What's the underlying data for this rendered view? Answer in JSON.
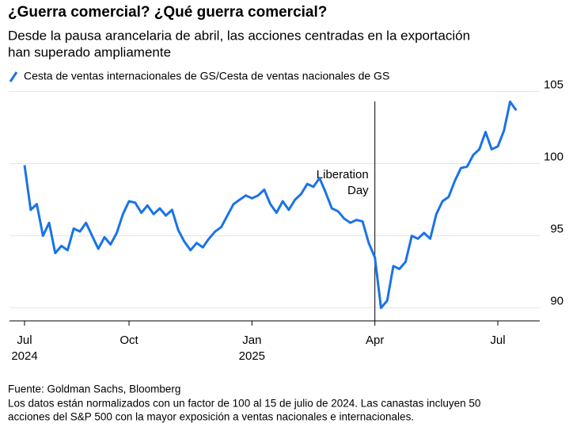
{
  "chart_data": {
    "type": "line",
    "title": "¿Guerra comercial? ¿Qué guerra comercial?",
    "subtitle": [
      "Desde la pausa arancelaria de abril, las acciones centradas en la exportación",
      "han superado ampliamente"
    ],
    "categories": [
      "Jul",
      null,
      null,
      null,
      null,
      null,
      null,
      null,
      null,
      null,
      null,
      null,
      null,
      null,
      null,
      null,
      null,
      "Oct",
      null,
      null,
      null,
      null,
      null,
      null,
      null,
      null,
      null,
      null,
      null,
      null,
      null,
      null,
      null,
      null,
      null,
      null,
      null,
      "Jan",
      null,
      null,
      null,
      null,
      null,
      null,
      null,
      null,
      null,
      null,
      null,
      null,
      null,
      null,
      null,
      null,
      null,
      null,
      null,
      "Apr",
      null,
      null,
      null,
      null,
      null,
      null,
      null,
      null,
      null,
      null,
      null,
      null,
      null,
      null,
      null,
      null,
      null,
      null,
      null,
      "Jul",
      null,
      null,
      null
    ],
    "years": [
      "2024",
      null,
      null,
      null,
      null,
      null,
      null,
      null,
      null,
      null,
      null,
      null,
      null,
      null,
      null,
      null,
      null,
      null,
      null,
      null,
      null,
      null,
      null,
      null,
      null,
      null,
      null,
      null,
      null,
      null,
      null,
      null,
      null,
      null,
      null,
      null,
      null,
      "2025",
      null,
      null,
      null,
      null,
      null,
      null,
      null,
      null,
      null,
      null,
      null,
      null,
      null,
      null,
      null,
      null,
      null,
      null,
      null,
      null,
      null,
      null,
      null,
      null,
      null,
      null,
      null,
      null,
      null,
      null,
      null,
      null,
      null,
      null,
      null,
      null,
      null,
      null,
      null,
      null,
      null,
      null,
      null,
      null,
      null
    ],
    "series": [
      {
        "name": "Cesta de ventas internacionales de GS/Cesta de ventas nacionales de GS",
        "color": "#1a73e8",
        "values": [
          99.9,
          96.8,
          97.2,
          95.0,
          95.9,
          93.8,
          94.3,
          94.0,
          95.5,
          95.3,
          95.9,
          95.0,
          94.1,
          94.9,
          94.4,
          95.2,
          96.5,
          97.4,
          97.3,
          96.6,
          97.1,
          96.5,
          96.9,
          96.4,
          96.8,
          95.4,
          94.6,
          94.0,
          94.5,
          94.2,
          94.8,
          95.3,
          95.6,
          96.4,
          97.2,
          97.5,
          97.8,
          97.6,
          97.8,
          98.2,
          97.2,
          96.6,
          97.4,
          96.8,
          97.5,
          97.9,
          98.6,
          98.4,
          99.0,
          98.0,
          96.9,
          96.7,
          96.2,
          95.9,
          96.1,
          96.0,
          94.5,
          93.5,
          90.0,
          90.5,
          92.9,
          92.7,
          93.2,
          95.0,
          94.8,
          95.2,
          94.8,
          96.5,
          97.4,
          97.7,
          98.8,
          99.7,
          99.8,
          100.6,
          101.0,
          102.2,
          101.0,
          101.2,
          102.3,
          104.3,
          103.7
        ]
      }
    ],
    "ylim": [
      89.1,
      105.2
    ],
    "yticks": [
      90,
      95,
      100,
      105
    ],
    "grid": true,
    "annotation": [
      "Liberation",
      "Day"
    ],
    "source": "Fuente: Goldman Sachs, Bloomberg",
    "notes": [
      "Los datos están normalizados con un factor de 100 al 15 de julio de 2024. Las canastas incluyen 50",
      "acciones del S&P 500 con la mayor exposición a ventas nacionales e internacionales."
    ]
  }
}
